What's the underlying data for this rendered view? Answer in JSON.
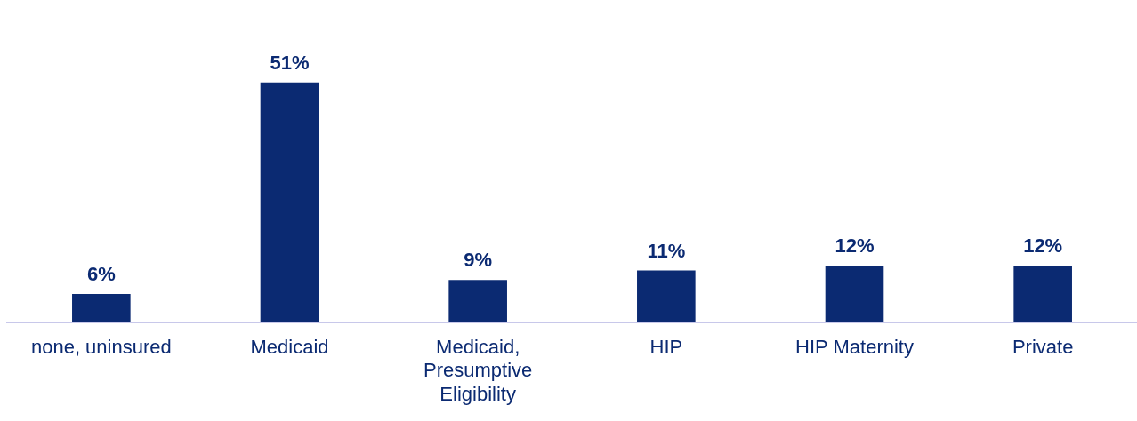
{
  "chart_data": {
    "type": "bar",
    "categories": [
      "none, uninsured",
      "Medicaid",
      "Medicaid, Presumptive Eligibility",
      "HIP",
      "HIP Maternity",
      "Private"
    ],
    "values": [
      6,
      51,
      9,
      11,
      12,
      12
    ],
    "value_labels": [
      "6%",
      "51%",
      "9%",
      "11%",
      "12%",
      "12%"
    ],
    "color": "#0b2a72",
    "grid": false,
    "legend": false
  }
}
